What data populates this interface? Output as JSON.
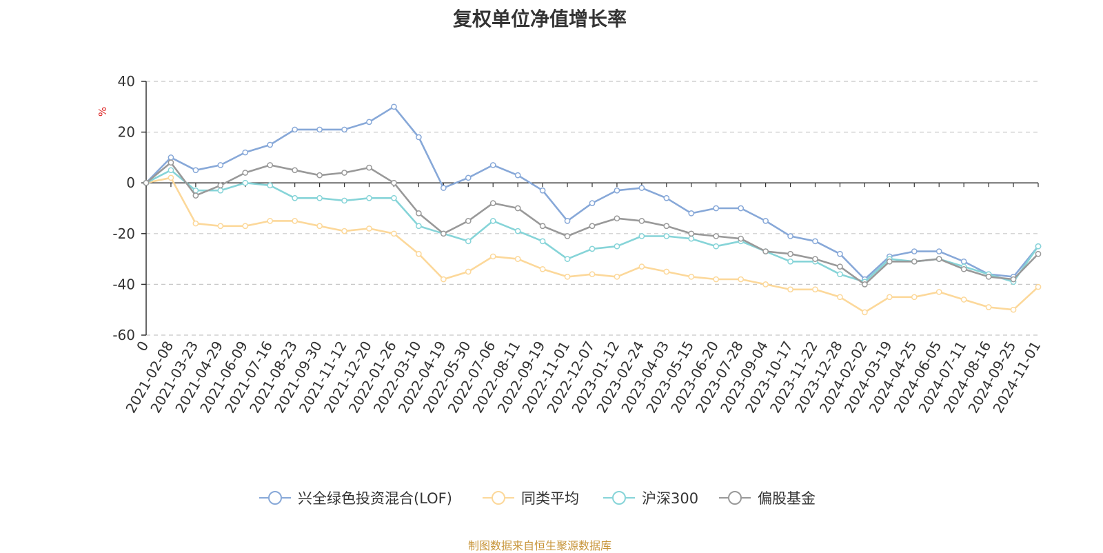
{
  "page": {
    "source_note": "制图数据来自恒生聚源数据库"
  },
  "chart_data": {
    "type": "line",
    "title": "复权单位净值增长率",
    "ylabel": "%",
    "xlabel": "",
    "ylim": [
      -60,
      40
    ],
    "yticks": [
      -60,
      -40,
      -20,
      0,
      20,
      40
    ],
    "grid": true,
    "legend_position": "bottom-center",
    "x": [
      "0",
      "2021-02-08",
      "2021-03-23",
      "2021-04-29",
      "2021-06-09",
      "2021-07-16",
      "2021-08-23",
      "2021-09-30",
      "2021-11-12",
      "2021-12-20",
      "2022-01-26",
      "2022-03-10",
      "2022-04-19",
      "2022-05-30",
      "2022-07-06",
      "2022-08-11",
      "2022-09-19",
      "2022-11-01",
      "2022-12-07",
      "2023-01-12",
      "2023-02-24",
      "2023-04-03",
      "2023-05-15",
      "2023-06-20",
      "2023-07-28",
      "2023-09-04",
      "2023-10-17",
      "2023-11-22",
      "2023-12-28",
      "2024-02-02",
      "2024-03-19",
      "2024-04-25",
      "2024-06-05",
      "2024-07-11",
      "2024-08-16",
      "2024-09-25",
      "2024-11-01"
    ],
    "series": [
      {
        "name": "兴全绿色投资混合(LOF)",
        "color": "#87a8d8",
        "values": [
          0,
          10,
          5,
          7,
          12,
          15,
          21,
          21,
          21,
          24,
          30,
          18,
          -2,
          2,
          7,
          3,
          -3,
          -15,
          -8,
          -3,
          -2,
          -6,
          -12,
          -10,
          -10,
          -15,
          -21,
          -23,
          -28,
          -38,
          -29,
          -27,
          -27,
          -31,
          -36,
          -37,
          -25
        ]
      },
      {
        "name": "同类平均",
        "color": "#fcd89a",
        "values": [
          0,
          2,
          -16,
          -17,
          -17,
          -15,
          -15,
          -17,
          -19,
          -18,
          -20,
          -28,
          -38,
          -35,
          -29,
          -30,
          -34,
          -37,
          -36,
          -37,
          -33,
          -35,
          -37,
          -38,
          -38,
          -40,
          -42,
          -42,
          -45,
          -51,
          -45,
          -45,
          -43,
          -46,
          -49,
          -50,
          -41
        ]
      },
      {
        "name": "沪深300",
        "color": "#86d4d8",
        "values": [
          0,
          5,
          -3,
          -3,
          0,
          -1,
          -6,
          -6,
          -7,
          -6,
          -6,
          -17,
          -20,
          -23,
          -15,
          -19,
          -23,
          -30,
          -26,
          -25,
          -21,
          -21,
          -22,
          -25,
          -23,
          -27,
          -31,
          -31,
          -36,
          -39,
          -30,
          -31,
          -30,
          -33,
          -36,
          -39,
          -25
        ]
      },
      {
        "name": "偏股基金",
        "color": "#999999",
        "values": [
          0,
          8,
          -5,
          -1,
          4,
          7,
          5,
          3,
          4,
          6,
          0,
          -12,
          -20,
          -15,
          -8,
          -10,
          -17,
          -21,
          -17,
          -14,
          -15,
          -17,
          -20,
          -21,
          -22,
          -27,
          -28,
          -30,
          -33,
          -40,
          -31,
          -31,
          -30,
          -34,
          -37,
          -38,
          -28
        ]
      }
    ]
  }
}
